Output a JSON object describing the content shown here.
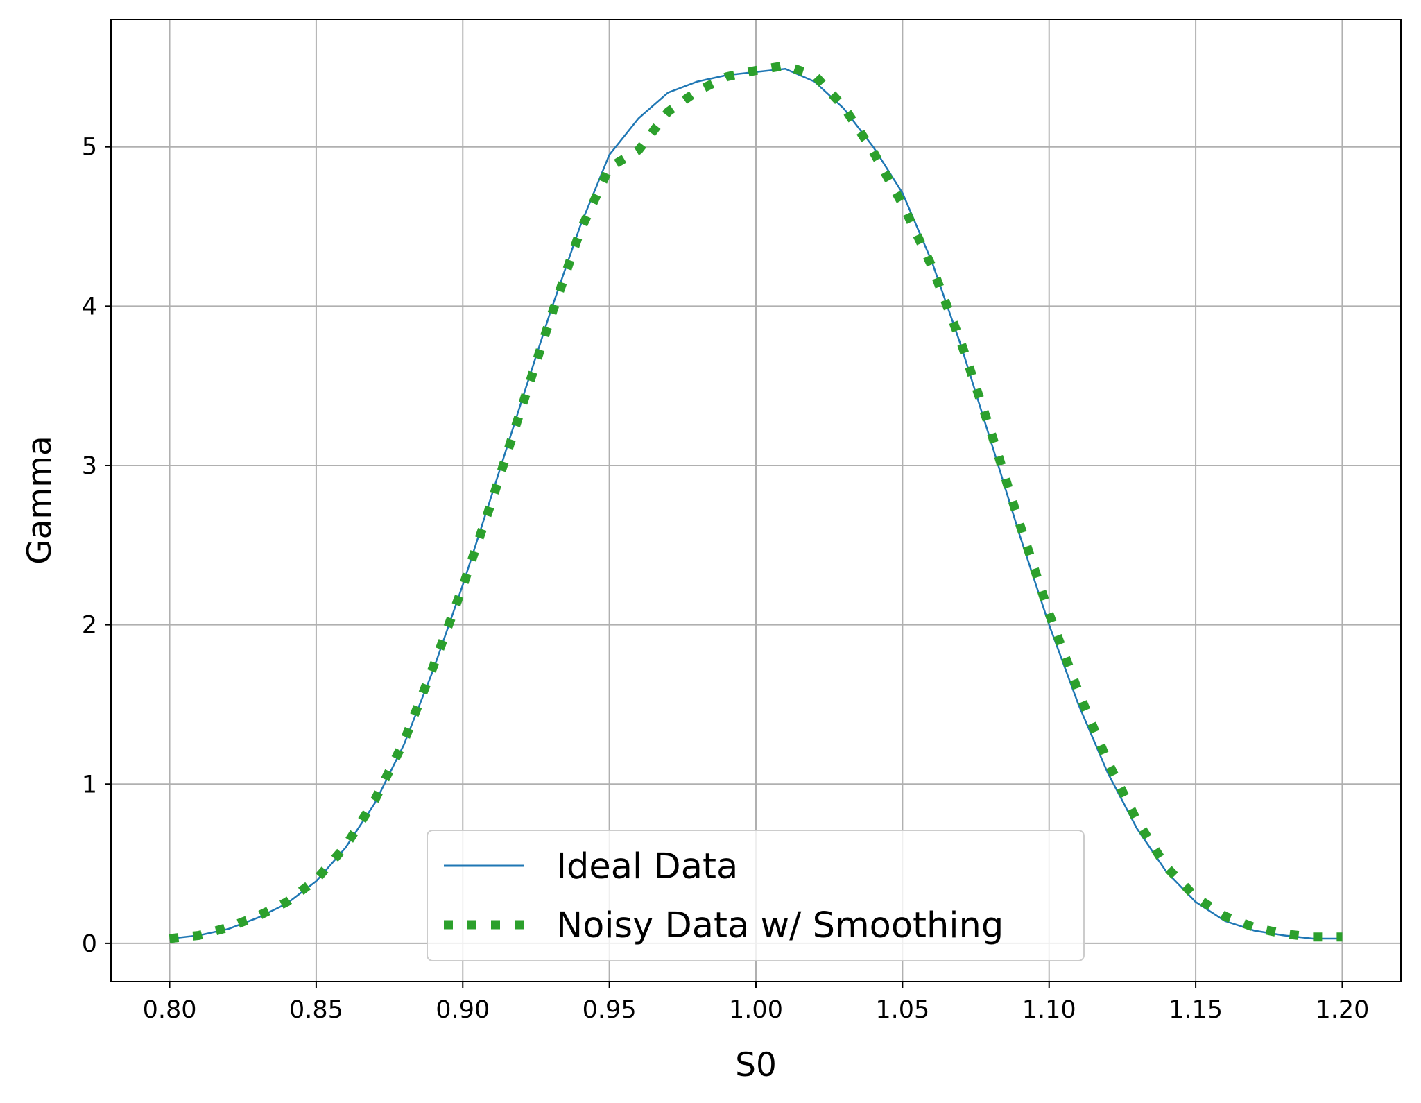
{
  "chart_data": {
    "type": "line",
    "title": "",
    "xlabel": "S0",
    "ylabel": "Gamma",
    "xlim": [
      0.78,
      1.22
    ],
    "ylim": [
      -0.24,
      5.8
    ],
    "x_ticks": [
      0.8,
      0.85,
      0.9,
      0.95,
      1.0,
      1.05,
      1.1,
      1.15,
      1.2
    ],
    "x_tick_labels": [
      "0.80",
      "0.85",
      "0.90",
      "0.95",
      "1.00",
      "1.05",
      "1.10",
      "1.15",
      "1.20"
    ],
    "y_ticks": [
      0,
      1,
      2,
      3,
      4,
      5
    ],
    "y_tick_labels": [
      "0",
      "1",
      "2",
      "3",
      "4",
      "5"
    ],
    "grid": true,
    "legend_position": "bottom-center",
    "series": [
      {
        "name": "Ideal Data",
        "style": "solid-thin",
        "color": "#1f77b4",
        "x": [
          0.8,
          0.81,
          0.82,
          0.83,
          0.84,
          0.85,
          0.86,
          0.87,
          0.88,
          0.89,
          0.9,
          0.91,
          0.92,
          0.93,
          0.94,
          0.95,
          0.96,
          0.97,
          0.98,
          0.99,
          1.0,
          1.01,
          1.02,
          1.03,
          1.04,
          1.05,
          1.06,
          1.07,
          1.08,
          1.09,
          1.1,
          1.11,
          1.12,
          1.13,
          1.14,
          1.15,
          1.16,
          1.17,
          1.18,
          1.19,
          1.2
        ],
        "y": [
          0.03,
          0.05,
          0.09,
          0.16,
          0.25,
          0.39,
          0.6,
          0.88,
          1.25,
          1.72,
          2.25,
          2.82,
          3.4,
          3.97,
          4.5,
          4.95,
          5.18,
          5.34,
          5.41,
          5.45,
          5.47,
          5.49,
          5.41,
          5.24,
          5.0,
          4.71,
          4.28,
          3.75,
          3.16,
          2.56,
          2.0,
          1.5,
          1.07,
          0.72,
          0.45,
          0.26,
          0.14,
          0.08,
          0.05,
          0.03,
          0.03
        ]
      },
      {
        "name": "Noisy Data w/ Smoothing",
        "style": "dotted-thick",
        "color": "#2ca02c",
        "x": [
          0.8,
          0.81,
          0.82,
          0.83,
          0.84,
          0.85,
          0.86,
          0.87,
          0.88,
          0.89,
          0.9,
          0.91,
          0.92,
          0.93,
          0.94,
          0.95,
          0.96,
          0.97,
          0.98,
          0.99,
          1.0,
          1.01,
          1.02,
          1.03,
          1.04,
          1.05,
          1.06,
          1.07,
          1.08,
          1.09,
          1.1,
          1.11,
          1.12,
          1.13,
          1.14,
          1.15,
          1.16,
          1.17,
          1.18,
          1.19,
          1.2
        ],
        "y": [
          0.03,
          0.05,
          0.1,
          0.17,
          0.26,
          0.4,
          0.61,
          0.9,
          1.27,
          1.74,
          2.24,
          2.78,
          3.36,
          3.93,
          4.47,
          4.87,
          4.98,
          5.22,
          5.35,
          5.44,
          5.48,
          5.51,
          5.45,
          5.25,
          4.97,
          4.64,
          4.25,
          3.77,
          3.22,
          2.63,
          2.07,
          1.58,
          1.14,
          0.77,
          0.48,
          0.29,
          0.17,
          0.1,
          0.06,
          0.04,
          0.04
        ]
      }
    ]
  }
}
